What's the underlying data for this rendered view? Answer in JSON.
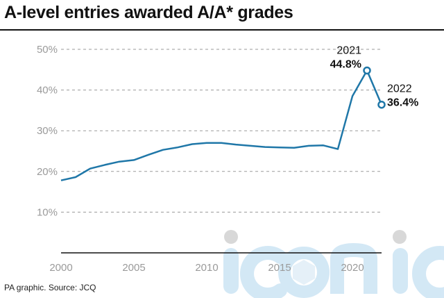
{
  "title": "A-level entries awarded A/A* grades",
  "source": "PA graphic. Source: JCQ",
  "colors": {
    "line": "#1f77a8",
    "grid": "#9a9a9a",
    "text": "#111111",
    "watermark": "#cfe6f5"
  },
  "watermark": {
    "text": "iconic",
    "logo": "iconic-watermark-logo"
  },
  "chart_data": {
    "type": "line",
    "title": "A-level entries awarded A/A* grades",
    "xlabel": "",
    "ylabel": "",
    "xlim": [
      2000,
      2022
    ],
    "ylim": [
      0,
      50
    ],
    "y_ticks": [
      10,
      20,
      30,
      40,
      50
    ],
    "y_tick_labels": [
      "10%",
      "20%",
      "30%",
      "40%",
      "50%"
    ],
    "x_ticks": [
      2000,
      2005,
      2010,
      2015,
      2020
    ],
    "x_tick_labels": [
      "2000",
      "2005",
      "2010",
      "2015",
      "2020"
    ],
    "grid": "horizontal dashed",
    "series": [
      {
        "x": [
          2000,
          2001,
          2002,
          2003,
          2004,
          2005,
          2006,
          2007,
          2008,
          2009,
          2010,
          2011,
          2012,
          2013,
          2014,
          2015,
          2016,
          2017,
          2018,
          2019,
          2020,
          2021,
          2022
        ],
        "values": [
          17.8,
          18.6,
          20.7,
          21.6,
          22.4,
          22.8,
          24.1,
          25.3,
          25.9,
          26.7,
          27.0,
          27.0,
          26.6,
          26.3,
          26.0,
          25.9,
          25.8,
          26.3,
          26.4,
          25.5,
          38.5,
          44.8,
          36.4
        ]
      }
    ],
    "annotations": [
      {
        "year": "2021",
        "label": "44.8%",
        "x": 2021,
        "y": 44.8
      },
      {
        "year": "2022",
        "label": "36.4%",
        "x": 2022,
        "y": 36.4
      }
    ]
  }
}
